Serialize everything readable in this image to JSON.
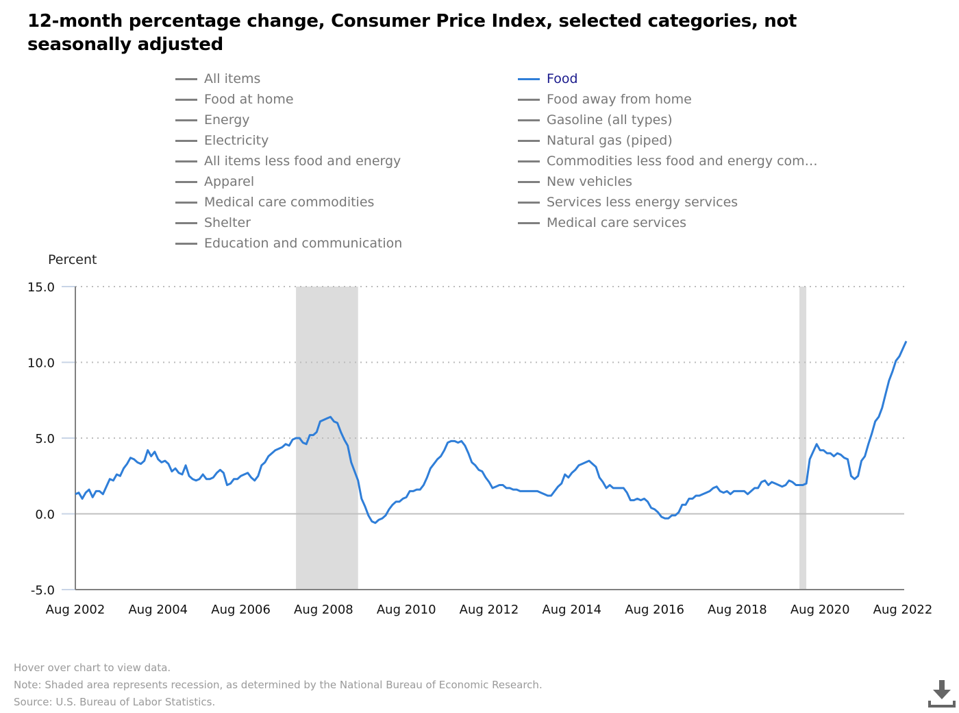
{
  "title": "12-month percentage change, Consumer Price Index, selected categories, not seasonally adjusted",
  "legend": {
    "left": [
      "All items",
      "Food at home",
      "Energy",
      "Electricity",
      "All items less food and energy",
      "Apparel",
      "Medical care commodities",
      "Shelter",
      "Education and communication"
    ],
    "right": [
      "Food",
      "Food away from home",
      "Gasoline (all types)",
      "Natural gas (piped)",
      "Commodities less food and energy com…",
      "New vehicles",
      "Services less energy services",
      "Medical care services"
    ],
    "active": "Food"
  },
  "colors": {
    "active_series": "#2f7ed8",
    "inactive_series": "#7f7f7f",
    "recession_shade": "#dcdcdc"
  },
  "footer": {
    "hover": "Hover over chart to view data.",
    "note": "Note: Shaded area represents recession, as determined by the National Bureau of Economic Research.",
    "source": "Source: U.S. Bureau of Labor Statistics."
  },
  "download_icon": "download-icon",
  "chart_data": {
    "type": "line",
    "title": "12-month percentage change, Consumer Price Index, selected categories, not seasonally adjusted",
    "xlabel": "",
    "ylabel": "Percent",
    "ylim": [
      -5,
      15
    ],
    "yticks": [
      "15.0",
      "10.0",
      "5.0",
      "0.0",
      "-5.0"
    ],
    "ytick_values": [
      15,
      10,
      5,
      0,
      -5
    ],
    "xtick_labels": [
      "Aug 2002",
      "Aug 2004",
      "Aug 2006",
      "Aug 2008",
      "Aug 2010",
      "Aug 2012",
      "Aug 2014",
      "Aug 2016",
      "Aug 2018",
      "Aug 2020",
      "Aug 2022"
    ],
    "x_start": "Aug 2002",
    "x_end": "Aug 2022",
    "grid": "horizontal dotted",
    "legend_position": "top",
    "recessions": [
      {
        "start": "Dec 2007",
        "end": "Jun 2009"
      },
      {
        "start": "Feb 2020",
        "end": "Apr 2020"
      }
    ],
    "series": [
      {
        "name": "Food",
        "start": "Aug 2002",
        "frequency": "monthly",
        "values": [
          1.3,
          1.4,
          1.0,
          1.4,
          1.6,
          1.1,
          1.5,
          1.5,
          1.3,
          1.8,
          2.3,
          2.2,
          2.6,
          2.5,
          3.0,
          3.3,
          3.7,
          3.6,
          3.4,
          3.3,
          3.5,
          4.2,
          3.8,
          4.1,
          3.6,
          3.4,
          3.5,
          3.3,
          2.8,
          3.0,
          2.7,
          2.6,
          3.2,
          2.5,
          2.3,
          2.2,
          2.3,
          2.6,
          2.3,
          2.3,
          2.4,
          2.7,
          2.9,
          2.7,
          1.9,
          2.0,
          2.3,
          2.3,
          2.5,
          2.6,
          2.7,
          2.4,
          2.2,
          2.5,
          3.2,
          3.4,
          3.8,
          4.0,
          4.2,
          4.3,
          4.4,
          4.6,
          4.5,
          4.9,
          5.0,
          5.0,
          4.7,
          4.6,
          5.2,
          5.2,
          5.4,
          6.1,
          6.2,
          6.3,
          6.4,
          6.1,
          6.0,
          5.4,
          4.9,
          4.5,
          3.4,
          2.8,
          2.2,
          1.0,
          0.5,
          -0.1,
          -0.5,
          -0.6,
          -0.4,
          -0.3,
          -0.1,
          0.3,
          0.6,
          0.8,
          0.8,
          1.0,
          1.1,
          1.5,
          1.5,
          1.6,
          1.6,
          1.9,
          2.4,
          3.0,
          3.3,
          3.6,
          3.8,
          4.2,
          4.7,
          4.8,
          4.8,
          4.7,
          4.8,
          4.5,
          4.0,
          3.4,
          3.2,
          2.9,
          2.8,
          2.4,
          2.1,
          1.7,
          1.8,
          1.9,
          1.9,
          1.7,
          1.7,
          1.6,
          1.6,
          1.5,
          1.5,
          1.5,
          1.5,
          1.5,
          1.5,
          1.4,
          1.3,
          1.2,
          1.2,
          1.5,
          1.8,
          2.0,
          2.6,
          2.4,
          2.7,
          2.9,
          3.2,
          3.3,
          3.4,
          3.5,
          3.3,
          3.1,
          2.4,
          2.1,
          1.7,
          1.9,
          1.7,
          1.7,
          1.7,
          1.7,
          1.4,
          0.9,
          0.9,
          1.0,
          0.9,
          1.0,
          0.8,
          0.4,
          0.3,
          0.1,
          -0.2,
          -0.3,
          -0.3,
          -0.1,
          -0.1,
          0.1,
          0.6,
          0.6,
          1.0,
          1.0,
          1.2,
          1.2,
          1.3,
          1.4,
          1.5,
          1.7,
          1.8,
          1.5,
          1.4,
          1.5,
          1.3,
          1.5,
          1.5,
          1.5,
          1.5,
          1.3,
          1.5,
          1.7,
          1.7,
          2.1,
          2.2,
          1.9,
          2.1,
          2.0,
          1.9,
          1.8,
          1.9,
          2.2,
          2.1,
          1.9,
          1.9,
          1.9,
          2.0,
          3.6,
          4.1,
          4.6,
          4.2,
          4.2,
          4.0,
          4.0,
          3.8,
          4.0,
          3.9,
          3.7,
          3.6,
          2.5,
          2.3,
          2.5,
          3.5,
          3.8,
          4.6,
          5.3,
          6.1,
          6.4,
          7.0,
          7.9,
          8.8,
          9.4,
          10.1,
          10.4,
          10.9,
          11.4
        ]
      }
    ]
  }
}
